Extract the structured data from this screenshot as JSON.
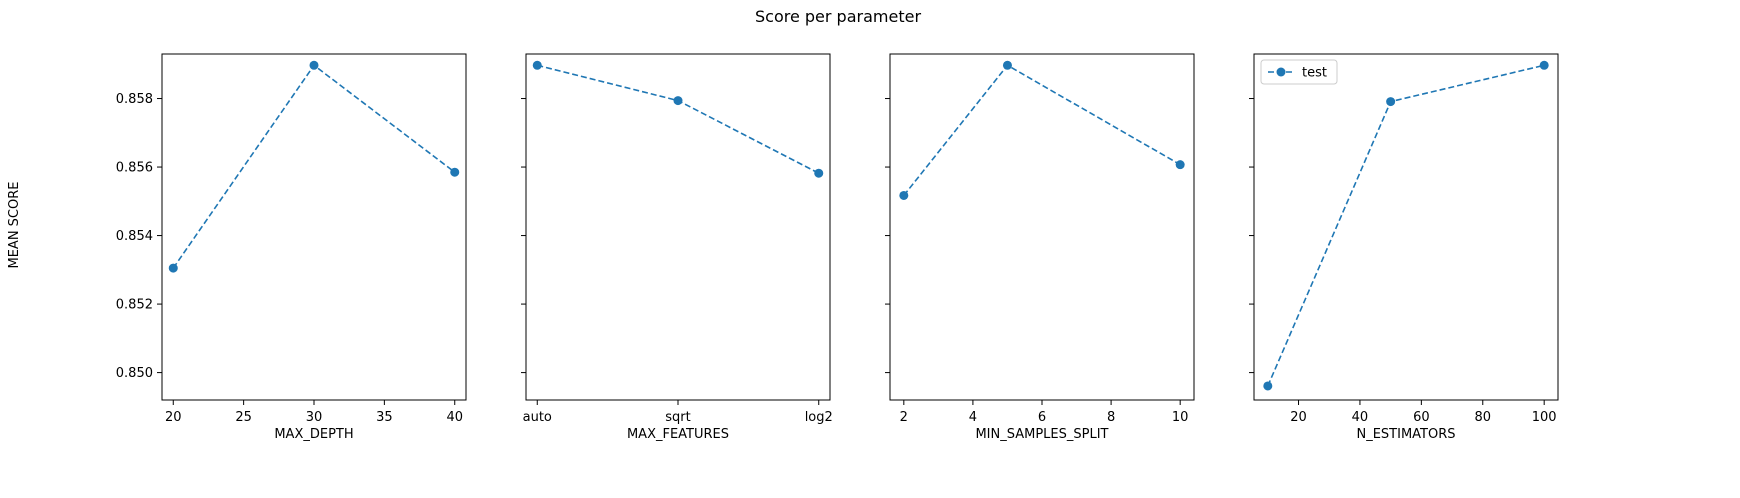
{
  "figure": {
    "title": "Score per parameter",
    "ylabel": "MEAN SCORE",
    "line_color": "#1f77b4"
  },
  "legend": {
    "label": "test"
  },
  "chart_data": [
    {
      "type": "line",
      "xlabel": "MAX_DEPTH",
      "x": [
        20,
        30,
        40
      ],
      "y": [
        0.85305,
        0.85897,
        0.85585
      ],
      "xlim": [
        19.2,
        40.8
      ],
      "xticks": [
        20,
        25,
        30,
        35,
        40
      ],
      "ylim": [
        0.8492,
        0.8593
      ],
      "yticks": [
        0.85,
        0.852,
        0.854,
        0.856,
        0.858
      ],
      "ytick_labels": [
        "0.850",
        "0.852",
        "0.854",
        "0.856",
        "0.858"
      ],
      "line_style": "dashed",
      "marker": "circle",
      "grid": false
    },
    {
      "type": "line",
      "xlabel": "MAX_FEATURES",
      "categories": [
        "auto",
        "sqrt",
        "log2"
      ],
      "y": [
        0.85897,
        0.85794,
        0.85582
      ],
      "ylim": [
        0.8492,
        0.8593
      ],
      "line_style": "dashed",
      "marker": "circle",
      "grid": false
    },
    {
      "type": "line",
      "xlabel": "MIN_SAMPLES_SPLIT",
      "x": [
        2,
        5,
        10
      ],
      "y": [
        0.85517,
        0.85897,
        0.85607
      ],
      "xlim": [
        1.6,
        10.4
      ],
      "xticks": [
        2,
        4,
        6,
        8,
        10
      ],
      "ylim": [
        0.8492,
        0.8593
      ],
      "line_style": "dashed",
      "marker": "circle",
      "grid": false
    },
    {
      "type": "line",
      "xlabel": "N_ESTIMATORS",
      "x": [
        10,
        50,
        100
      ],
      "y": [
        0.84961,
        0.85791,
        0.85897
      ],
      "xlim": [
        5.5,
        104.5
      ],
      "xticks": [
        20,
        40,
        60,
        80,
        100
      ],
      "ylim": [
        0.8492,
        0.8593
      ],
      "series_name": "test",
      "legend": "upper left",
      "line_style": "dashed",
      "marker": "circle",
      "grid": false
    }
  ]
}
